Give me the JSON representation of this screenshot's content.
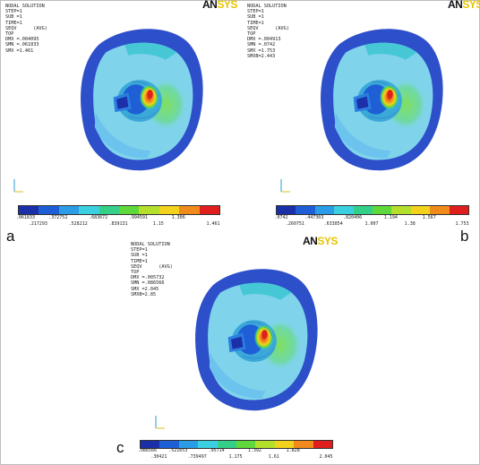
{
  "colormap": [
    "#1a2fa8",
    "#1e5fd6",
    "#2b9de6",
    "#3ad0e0",
    "#34d08a",
    "#5ed83a",
    "#b4e02c",
    "#f2d21c",
    "#f08a1a",
    "#e01e1e"
  ],
  "logo": {
    "an": "AN",
    "sys": "SYS"
  },
  "axis": {
    "y": "Y",
    "z": "Z",
    "x": "X"
  },
  "panels": [
    {
      "label": "a",
      "info": [
        "NODAL SOLUTION",
        "STEP=1",
        "SUB =1",
        "TIME=1",
        "SEQV      (AVG)",
        "TOP",
        "DMX =.004095",
        "SMN =.061833",
        "SMX =1.461"
      ],
      "ticks_top": [
        ".061833",
        ".372752",
        ".683672",
        ".994591",
        "1.306"
      ],
      "ticks_bottom": [
        ".217293",
        ".528212",
        ".839131",
        "1.15",
        "1.461"
      ]
    },
    {
      "label": "b",
      "info": [
        "NODAL SOLUTION",
        "STEP=1",
        "SUB =1",
        "TIME=1",
        "SEQV      (AVG)",
        "TOP",
        "DMX =.004913",
        "SMN =.0742",
        "SMX =1.753",
        "SMXB=2.443"
      ],
      "ticks_top": [
        ".0742",
        ".447303",
        ".820406",
        "1.194",
        "1.567"
      ],
      "ticks_bottom": [
        ".260751",
        ".633854",
        "1.007",
        "1.38",
        "1.753"
      ]
    },
    {
      "label": "c",
      "info": [
        "NODAL SOLUTION",
        "STEP=1",
        "SUB =1",
        "TIME=1",
        "SEQV      (AVG)",
        "TOP",
        "DMX =.005732",
        "SMN =.086566",
        "SMX =2.045",
        "SMXB=2.85"
      ],
      "ticks_top": [
        ".086566",
        ".521653",
        ".95714",
        "1.392",
        "1.828"
      ],
      "ticks_bottom": [
        ".30421",
        ".739497",
        "1.175",
        "1.61",
        "2.045"
      ]
    }
  ]
}
